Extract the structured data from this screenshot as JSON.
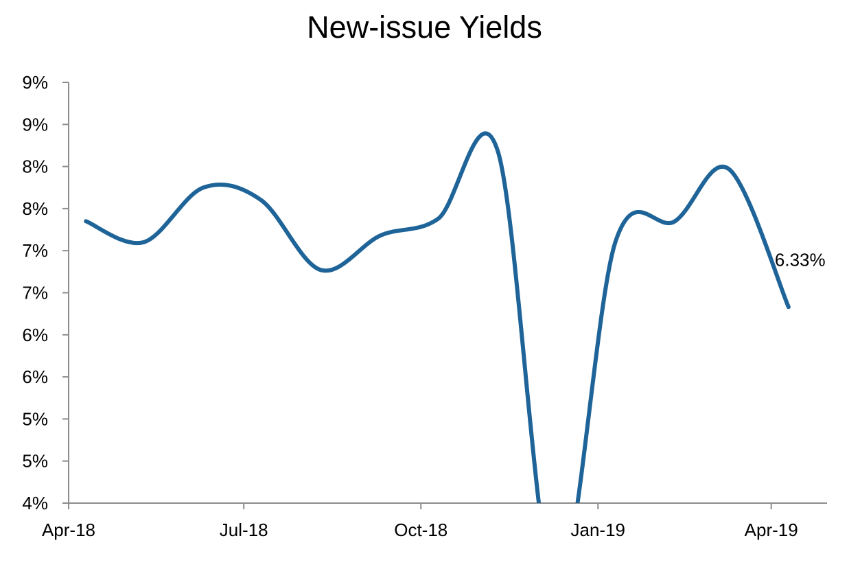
{
  "chart_data": {
    "type": "line",
    "title": "New-issue Yields",
    "xlabel": "",
    "ylabel": "",
    "x": [
      "2018-04-10",
      "2018-05-10",
      "2018-06-10",
      "2018-07-10",
      "2018-08-10",
      "2018-09-10",
      "2018-10-10",
      "2018-11-10",
      "2018-12-10",
      "2019-01-10",
      "2019-02-10",
      "2019-03-10",
      "2019-04-10"
    ],
    "series": [
      {
        "values": [
          7.35,
          7.1,
          7.75,
          7.6,
          6.77,
          7.18,
          7.38,
          8.18,
          3.0,
          7.1,
          7.35,
          7.97,
          6.33
        ],
        "color": "#1F6498"
      }
    ],
    "ylim": [
      4.0,
      9.0
    ],
    "y_ticks": [
      4.0,
      4.5,
      5.0,
      5.5,
      6.0,
      6.5,
      7.0,
      7.5,
      8.0,
      8.5,
      9.0
    ],
    "y_tick_labels": [
      "4%",
      "5%",
      "5%",
      "6%",
      "6%",
      "7%",
      "7%",
      "8%",
      "8%",
      "9%",
      "9%"
    ],
    "x_ticks": [
      "2018-04-01",
      "2018-07-01",
      "2018-10-01",
      "2019-01-01",
      "2019-04-01"
    ],
    "x_tick_labels": [
      "Apr-18",
      "Jul-18",
      "Oct-18",
      "Jan-19",
      "Apr-19"
    ],
    "x_range": [
      "2018-04-01",
      "2019-04-30"
    ],
    "data_labels": [
      {
        "index": 12,
        "text": "6.33%"
      }
    ],
    "grid": false,
    "legend": "none"
  }
}
